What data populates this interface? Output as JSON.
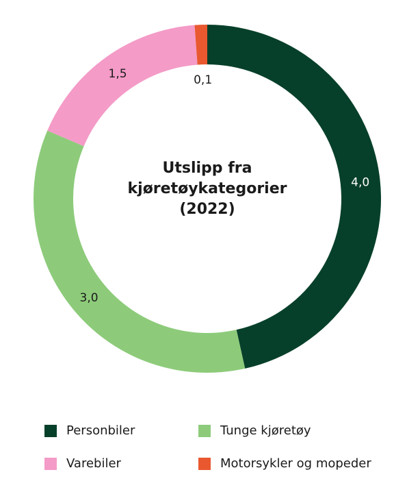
{
  "chart_data": {
    "type": "pie",
    "style": "donut",
    "center_title": [
      "Utslipp fra",
      "kjøretøykategorier",
      "(2022)"
    ],
    "categories": [
      "Personbiler",
      "Tunge kjøretøy",
      "Varebiler",
      "Motorsykler og mopeder"
    ],
    "values": [
      4.0,
      3.0,
      1.5,
      0.1
    ],
    "value_labels": [
      "4,0",
      "3,0",
      "1,5",
      "0,1"
    ],
    "colors": [
      "#07402a",
      "#8dcb7a",
      "#f49bc7",
      "#e9582f"
    ],
    "label_colors": [
      "#ffffff",
      "#1a1a1a",
      "#1a1a1a",
      "#1a1a1a"
    ],
    "legend_position": "bottom"
  }
}
